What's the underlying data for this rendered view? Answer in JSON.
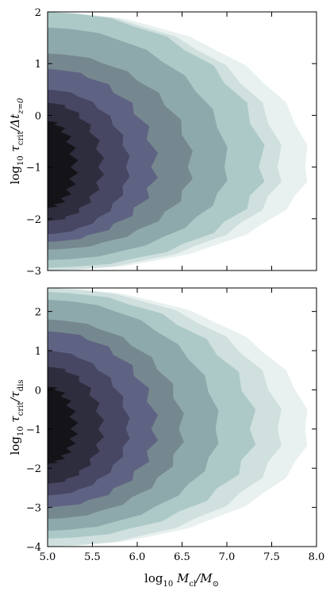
{
  "chart_data": [
    {
      "type": "contour",
      "panel": "top",
      "xlim": [
        5.0,
        8.0
      ],
      "ylim": [
        -3,
        2
      ],
      "x_ticks": [
        "5.0",
        "5.5",
        "6.0",
        "6.5",
        "7.0",
        "7.5",
        "8.0"
      ],
      "y_ticks": [
        "2",
        "1",
        "0",
        "−1",
        "−2",
        "−3"
      ],
      "ylabel": "log10 τcrit/Δtz=0",
      "ylabel_parts": {
        "log": "log",
        "log_sub": "10",
        "tau": "τ",
        "tau_sub": "crit",
        "slash": "/Δt",
        "dt_sub": "z=0"
      },
      "density_peak": {
        "x": 5.0,
        "y": -1.0
      },
      "levels_outer_to_inner": [
        {
          "level": 1,
          "x_max": 7.9,
          "y_top": 2.0,
          "y_bottom": -3.0
        },
        {
          "level": 2,
          "x_max": 7.6,
          "y_top": 2.0,
          "y_bottom": -3.0
        },
        {
          "level": 3,
          "x_max": 7.4,
          "y_top": 2.0,
          "y_bottom": -2.95
        },
        {
          "level": 4,
          "x_max": 7.0,
          "y_top": 1.7,
          "y_bottom": -2.8
        },
        {
          "level": 5,
          "x_max": 6.6,
          "y_top": 1.2,
          "y_bottom": -2.6
        },
        {
          "level": 6,
          "x_max": 6.2,
          "y_top": 0.9,
          "y_bottom": -2.45
        },
        {
          "level": 7,
          "x_max": 5.9,
          "y_top": 0.5,
          "y_bottom": -2.3
        },
        {
          "level": 8,
          "x_max": 5.6,
          "y_top": 0.25,
          "y_bottom": -2.05
        },
        {
          "level": 9,
          "x_max": 5.3,
          "y_top": -0.1,
          "y_bottom": -1.8
        }
      ]
    },
    {
      "type": "contour",
      "panel": "bottom",
      "xlim": [
        5.0,
        8.0
      ],
      "ylim": [
        -4,
        2.6
      ],
      "x_ticks": [
        "5.0",
        "5.5",
        "6.0",
        "6.5",
        "7.0",
        "7.5",
        "8.0"
      ],
      "y_ticks": [
        "2",
        "1",
        "0",
        "−1",
        "−2",
        "−3",
        "−4"
      ],
      "xlabel": "log10 Mcl/M⊙",
      "xlabel_parts": {
        "log": "log",
        "log_sub": "10",
        "M": "M",
        "M_sub": "cl",
        "slash": "/M",
        "sun_sub": "⊙"
      },
      "ylabel": "log10 τcrit/τdis",
      "ylabel_parts": {
        "log": "log",
        "log_sub": "10",
        "tau": "τ",
        "tau_sub": "crit",
        "slash": "/τ",
        "dis_sub": "dis"
      },
      "density_peak": {
        "x": 5.0,
        "y": -1.0
      },
      "levels_outer_to_inner": [
        {
          "level": 1,
          "x_max": 7.9,
          "y_top": 2.6,
          "y_bottom": -4.0
        },
        {
          "level": 2,
          "x_max": 7.6,
          "y_top": 2.6,
          "y_bottom": -4.0
        },
        {
          "level": 3,
          "x_max": 7.3,
          "y_top": 2.5,
          "y_bottom": -3.8
        },
        {
          "level": 4,
          "x_max": 6.9,
          "y_top": 2.3,
          "y_bottom": -3.6
        },
        {
          "level": 5,
          "x_max": 6.5,
          "y_top": 1.8,
          "y_bottom": -3.3
        },
        {
          "level": 6,
          "x_max": 6.2,
          "y_top": 1.5,
          "y_bottom": -3.0
        },
        {
          "level": 7,
          "x_max": 5.9,
          "y_top": 1.0,
          "y_bottom": -2.7
        },
        {
          "level": 8,
          "x_max": 5.6,
          "y_top": 0.6,
          "y_bottom": -2.4
        },
        {
          "level": 9,
          "x_max": 5.3,
          "y_top": 0.1,
          "y_bottom": -1.9
        }
      ]
    }
  ],
  "colors": {
    "level_1": "#e8f1ef",
    "level_2": "#cfe0de",
    "level_3": "#acc9c7",
    "level_4": "#8ea9ab",
    "level_5": "#76888f",
    "level_6": "#5f6383",
    "level_7": "#474763",
    "level_8": "#2e2d3d",
    "level_9": "#141318"
  }
}
